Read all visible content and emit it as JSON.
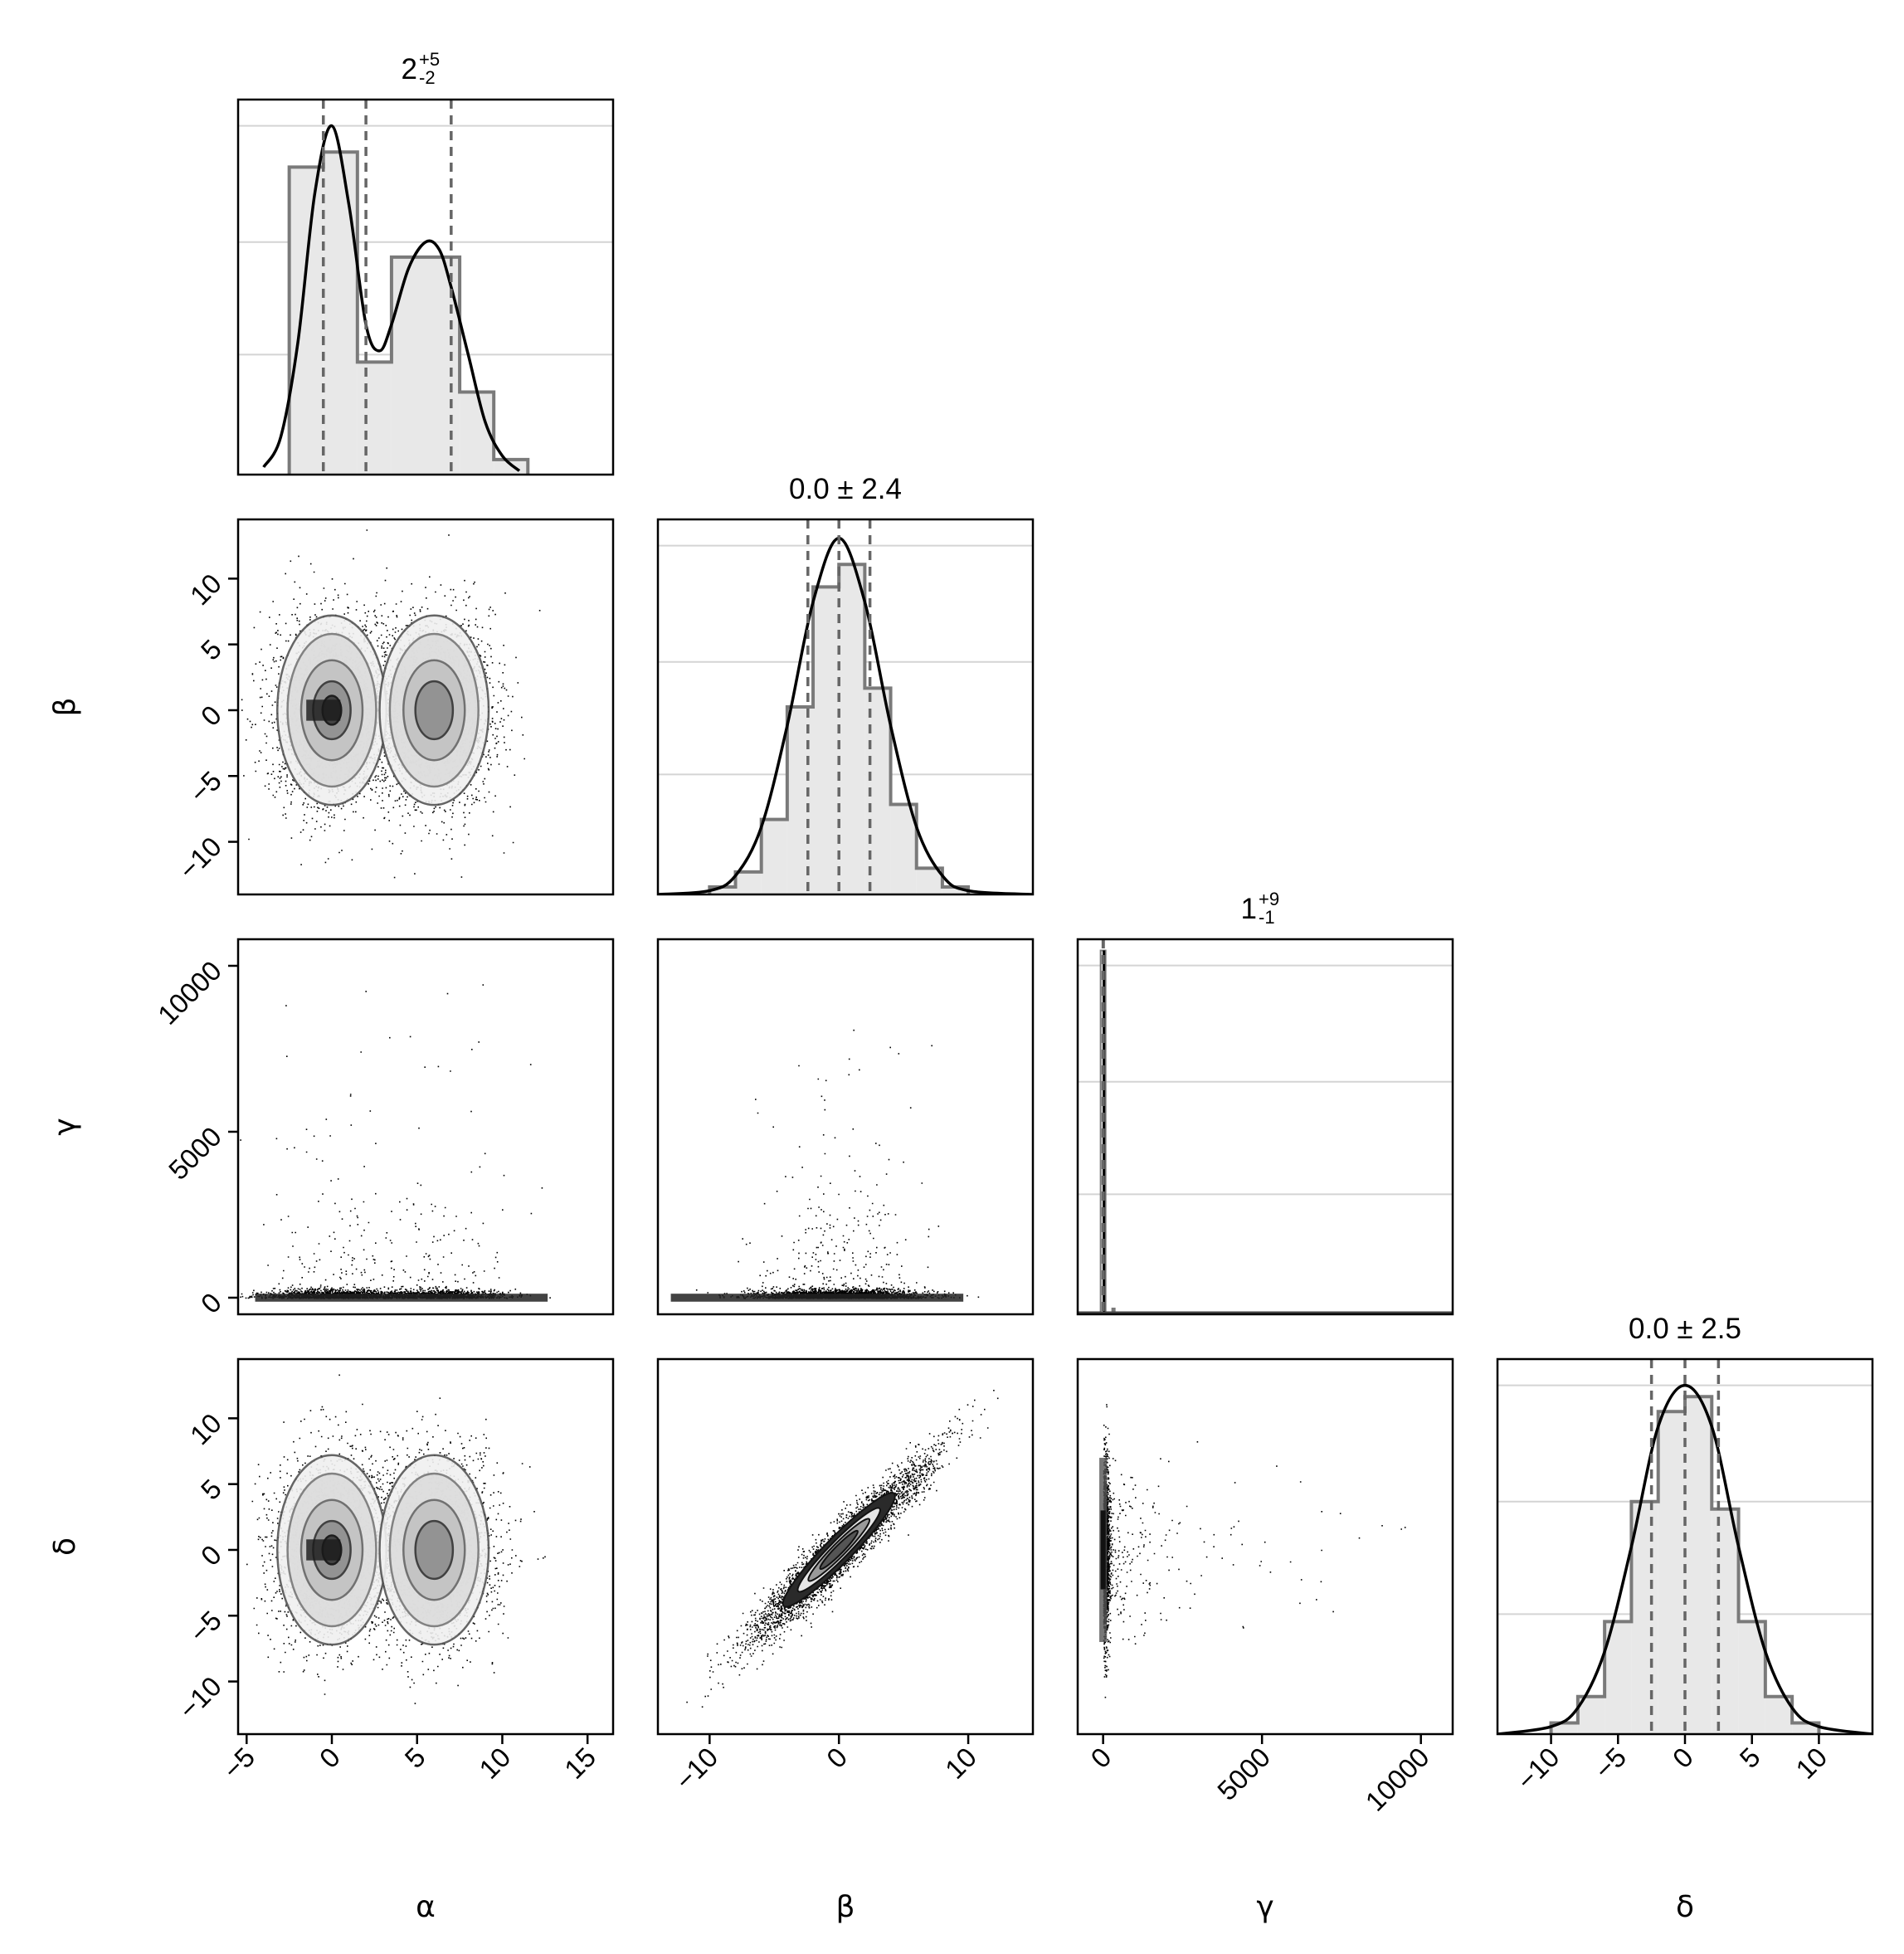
{
  "chart_data": {
    "type": "corner",
    "variables": [
      "α",
      "β",
      "γ",
      "δ"
    ],
    "grid": true,
    "panels_diagonal": [
      {
        "variable": "α",
        "title": {
          "main": "2",
          "sup": "+5",
          "sub": "-2"
        },
        "xlim": [
          -5.5,
          16.5
        ],
        "quantiles": [
          -0.5,
          2,
          7
        ],
        "kde": [
          [
            -4,
            0.02
          ],
          [
            -3,
            0.1
          ],
          [
            -2,
            0.35
          ],
          [
            -1,
            0.75
          ],
          [
            0,
            0.93
          ],
          [
            1,
            0.72
          ],
          [
            2,
            0.4
          ],
          [
            2.8,
            0.33
          ],
          [
            3.5,
            0.4
          ],
          [
            4.5,
            0.55
          ],
          [
            5.5,
            0.62
          ],
          [
            6.3,
            0.6
          ],
          [
            7,
            0.5
          ],
          [
            8,
            0.32
          ],
          [
            9,
            0.14
          ],
          [
            10,
            0.05
          ],
          [
            11,
            0.01
          ]
        ],
        "hist_edges": [
          -2.5,
          -0.5,
          1.5,
          3.5,
          5.5,
          7.5,
          9.5,
          11.5
        ],
        "hist_counts": [
          0.82,
          0.86,
          0.3,
          0.58,
          0.58,
          0.22,
          0.04
        ]
      },
      {
        "variable": "β",
        "title": {
          "main": "0.0 ± 2.4"
        },
        "xlim": [
          -14,
          15
        ],
        "quantiles": [
          -2.4,
          0,
          2.4
        ],
        "kde": [
          [
            -14,
            0
          ],
          [
            -10,
            0.01
          ],
          [
            -8,
            0.05
          ],
          [
            -6,
            0.18
          ],
          [
            -4,
            0.45
          ],
          [
            -2,
            0.78
          ],
          [
            0,
            0.95
          ],
          [
            2,
            0.78
          ],
          [
            4,
            0.45
          ],
          [
            6,
            0.18
          ],
          [
            8,
            0.05
          ],
          [
            10,
            0.01
          ],
          [
            15,
            0
          ]
        ],
        "hist_edges": [
          -10,
          -8,
          -6,
          -4,
          -2,
          0,
          2,
          4,
          6,
          8,
          10
        ],
        "hist_counts": [
          0.02,
          0.06,
          0.2,
          0.5,
          0.82,
          0.88,
          0.55,
          0.24,
          0.07,
          0.02
        ]
      },
      {
        "variable": "γ",
        "title": {
          "main": "1",
          "sup": "+9",
          "sub": "-1"
        },
        "xlim": [
          -800,
          11000
        ],
        "quantiles": [
          0,
          1,
          10
        ],
        "spike_x": 0,
        "spike_height": 0.97
      },
      {
        "variable": "δ",
        "title": {
          "main": "0.0 ± 2.5"
        },
        "xlim": [
          -14,
          14
        ],
        "quantiles": [
          -2.5,
          0,
          2.5
        ],
        "kde": [
          [
            -14,
            0
          ],
          [
            -10,
            0.02
          ],
          [
            -8,
            0.07
          ],
          [
            -6,
            0.22
          ],
          [
            -4,
            0.5
          ],
          [
            -2,
            0.82
          ],
          [
            0,
            0.93
          ],
          [
            2,
            0.82
          ],
          [
            4,
            0.5
          ],
          [
            6,
            0.22
          ],
          [
            8,
            0.07
          ],
          [
            10,
            0.02
          ],
          [
            14,
            0
          ]
        ],
        "hist_edges": [
          -10,
          -8,
          -6,
          -4,
          -2,
          0,
          2,
          4,
          6,
          8,
          10
        ],
        "hist_counts": [
          0.03,
          0.1,
          0.3,
          0.62,
          0.86,
          0.9,
          0.6,
          0.3,
          0.1,
          0.03
        ]
      }
    ],
    "panels_offdiagonal": [
      {
        "x": "α",
        "y": "β",
        "xlim": [
          -5.5,
          16.5
        ],
        "ylim": [
          -14,
          14.5
        ],
        "modes": [
          [
            0,
            0
          ],
          [
            6,
            0
          ]
        ],
        "shape": "bimodal"
      },
      {
        "x": "α",
        "y": "γ",
        "xlim": [
          -5.5,
          16.5
        ],
        "ylim": [
          -500,
          10800
        ],
        "shape": "heavy-tail-y"
      },
      {
        "x": "β",
        "y": "γ",
        "xlim": [
          -14,
          15
        ],
        "ylim": [
          -500,
          10800
        ],
        "shape": "heavy-tail-y"
      },
      {
        "x": "α",
        "y": "δ",
        "xlim": [
          -5.5,
          16.5
        ],
        "ylim": [
          -14,
          14.5
        ],
        "modes": [
          [
            0,
            0
          ],
          [
            6,
            0
          ]
        ],
        "shape": "bimodal"
      },
      {
        "x": "β",
        "y": "δ",
        "xlim": [
          -14,
          15
        ],
        "ylim": [
          -14,
          14.5
        ],
        "correlation": 0.95,
        "shape": "correlated"
      },
      {
        "x": "γ",
        "y": "δ",
        "xlim": [
          -800,
          11000
        ],
        "ylim": [
          -14,
          14.5
        ],
        "shape": "heavy-tail-x"
      }
    ],
    "ticks": {
      "α": [
        -5,
        0,
        5,
        10,
        15
      ],
      "β": [
        -10,
        -5,
        0,
        5,
        10
      ],
      "β_x": [
        -10,
        0,
        10
      ],
      "γ": [
        0,
        5000,
        10000
      ],
      "δ": [
        -10,
        -5,
        0,
        5,
        10
      ]
    },
    "tick_labels": {
      "α": [
        "−5",
        "0",
        "5",
        "10",
        "15"
      ],
      "β": [
        "−10",
        "−5",
        "0",
        "5",
        "10"
      ],
      "β_x": [
        "−10",
        "0",
        "10"
      ],
      "γ": [
        "0",
        "5000",
        "10000"
      ],
      "δ": [
        "−10",
        "−5",
        "0",
        "5",
        "10"
      ]
    }
  },
  "colors": {
    "frame": "#000000",
    "quantile": "#666666",
    "hist_fill": "#e8e8e8",
    "hist_edge": "#7a7a7a",
    "grid": "#d4d4d4",
    "kde": "#000000"
  }
}
